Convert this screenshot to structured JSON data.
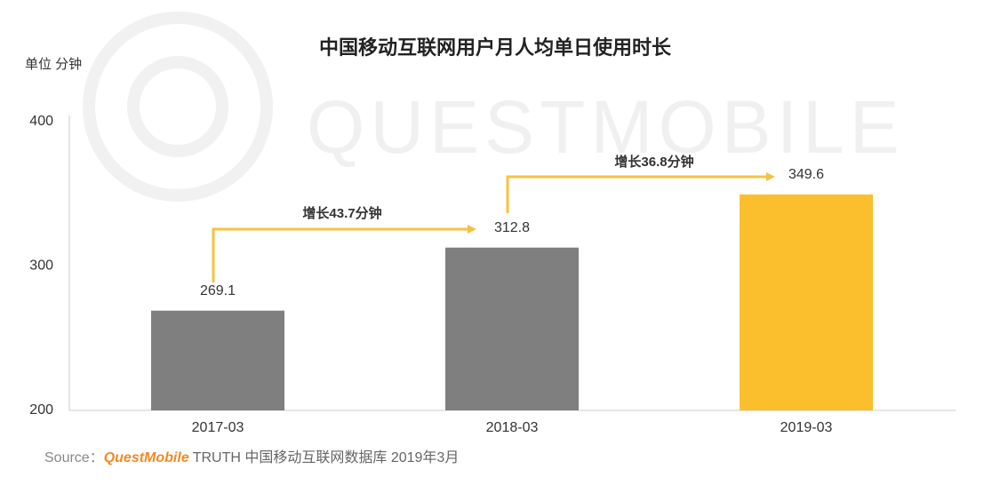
{
  "chart_data": {
    "type": "bar",
    "title": "中国移动互联网用户月人均单日使用时长",
    "unit_label": "单位 分钟",
    "categories": [
      "2017-03",
      "2018-03",
      "2019-03"
    ],
    "values": [
      269.1,
      312.8,
      349.6
    ],
    "colors": [
      "#7f7f7f",
      "#7f7f7f",
      "#fbbf2d"
    ],
    "ylim": [
      200,
      400
    ],
    "yticks": [
      200,
      300,
      400
    ],
    "grid": false,
    "annotations": [
      "增长43.7分钟",
      "增长36.8分钟"
    ],
    "annotation_color": "#f5c242",
    "watermark": "QUESTMOBILE",
    "source": {
      "label": "Source：",
      "brand": "QuestMobile",
      "text": "TRUTH 中国移动互联网数据库 2019年3月"
    }
  }
}
